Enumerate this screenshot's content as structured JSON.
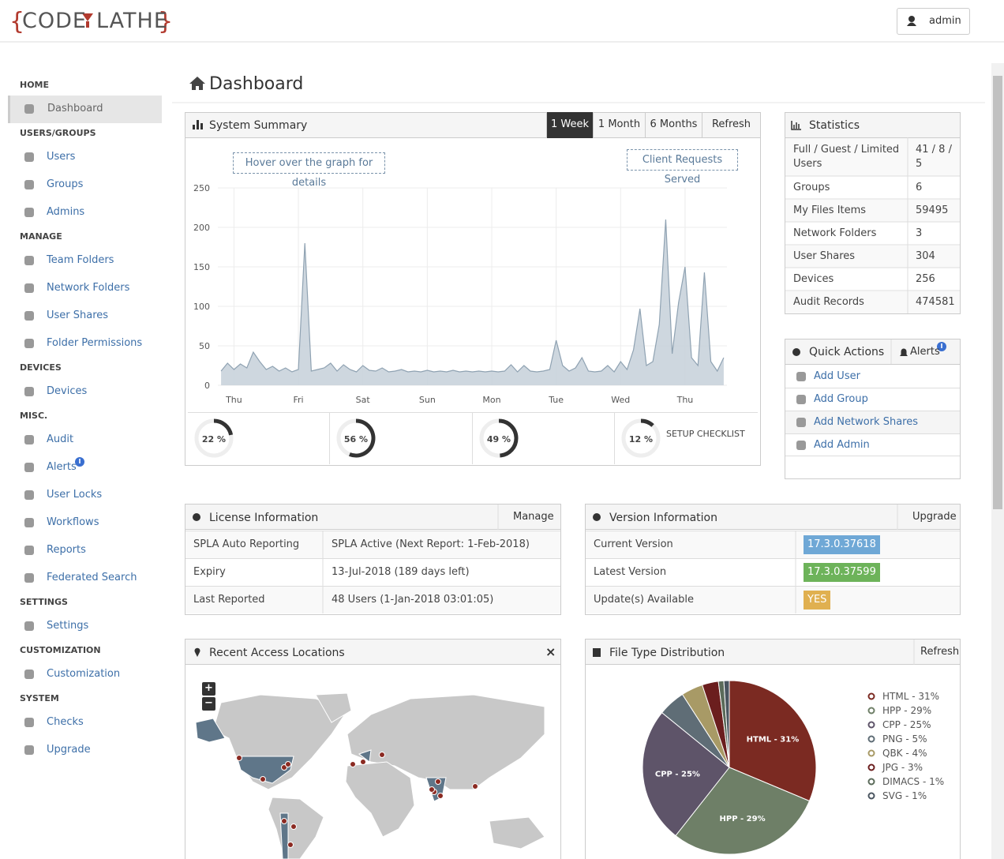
{
  "header": {
    "logo_left": "CODE",
    "logo_right": "LATHE",
    "user": "admin"
  },
  "sidebar": [
    {
      "heading": "HOME",
      "items": [
        "Dashboard"
      ]
    },
    {
      "heading": "USERS/GROUPS",
      "items": [
        "Users",
        "Groups",
        "Admins"
      ]
    },
    {
      "heading": "MANAGE",
      "items": [
        "Team Folders",
        "Network Folders",
        "User Shares",
        "Folder Permissions"
      ]
    },
    {
      "heading": "DEVICES",
      "items": [
        "Devices"
      ]
    },
    {
      "heading": "MISC.",
      "items": [
        "Audit",
        "Alerts",
        "User Locks",
        "Workflows",
        "Reports",
        "Federated Search"
      ]
    },
    {
      "heading": "SETTINGS",
      "items": [
        "Settings"
      ]
    },
    {
      "heading": "CUSTOMIZATION",
      "items": [
        "Customization"
      ]
    },
    {
      "heading": "SYSTEM",
      "items": [
        "Checks",
        "Upgrade"
      ]
    }
  ],
  "page_title": "Dashboard",
  "system_summary": {
    "title": "System Summary",
    "tabs": [
      "1 Week",
      "1 Month",
      "6 Months",
      "Refresh"
    ],
    "hint": "Hover over the graph for details",
    "gauges": [
      {
        "value": 22,
        "label": "22 %"
      },
      {
        "value": 56,
        "label": "56 %"
      },
      {
        "value": 49,
        "label": "49 %"
      },
      {
        "value": 12,
        "label": "12 %"
      }
    ],
    "setup_checklist": "SETUP CHECKLIST"
  },
  "chart_data": [
    {
      "type": "line",
      "x": [
        -0.2,
        -0.1,
        0,
        0.1,
        0.2,
        0.3,
        0.4,
        0.5,
        0.6,
        0.7,
        0.8,
        0.9,
        1.0,
        1.1,
        1.2,
        1.3,
        1.4,
        1.5,
        1.6,
        1.7,
        1.8,
        1.9,
        2.0,
        2.1,
        2.2,
        2.3,
        2.4,
        2.5,
        2.6,
        2.7,
        2.8,
        2.9,
        3.0,
        3.1,
        3.2,
        3.3,
        3.4,
        3.5,
        3.6,
        3.7,
        3.8,
        3.9,
        4.0,
        4.1,
        4.2,
        4.3,
        4.4,
        4.5,
        4.6,
        4.7,
        4.8,
        4.9,
        5.0,
        5.1,
        5.2,
        5.3,
        5.4,
        5.5,
        5.6,
        5.7,
        5.8,
        5.9,
        6.0,
        6.1,
        6.2,
        6.3,
        6.4,
        6.5,
        6.6,
        6.7,
        6.8,
        6.9,
        7.0,
        7.1,
        7.2,
        7.3,
        7.4,
        7.5,
        7.6
      ],
      "series": [
        {
          "name": "Client Requests Served",
          "color": "#8fa2b2",
          "values": [
            18,
            28,
            20,
            27,
            22,
            42,
            30,
            20,
            24,
            18,
            22,
            17,
            20,
            180,
            18,
            20,
            22,
            28,
            18,
            26,
            20,
            17,
            25,
            19,
            18,
            22,
            17,
            18,
            20,
            17,
            18,
            17,
            19,
            17,
            18,
            17,
            19,
            17,
            18,
            17,
            18,
            17,
            18,
            17,
            18,
            26,
            17,
            25,
            18,
            17,
            18,
            20,
            57,
            25,
            18,
            22,
            35,
            18,
            17,
            18,
            25,
            17,
            30,
            20,
            45,
            97,
            25,
            30,
            77,
            210,
            40,
            105,
            150,
            35,
            25,
            143,
            30,
            18,
            35
          ]
        }
      ],
      "xlim": [
        -0.25,
        7.65
      ],
      "xticks": [
        {
          "value": 0,
          "label": "Thu"
        },
        {
          "value": 1,
          "label": "Fri"
        },
        {
          "value": 2,
          "label": "Sat"
        },
        {
          "value": 3,
          "label": "Sun"
        },
        {
          "value": 4,
          "label": "Mon"
        },
        {
          "value": 5,
          "label": "Tue"
        },
        {
          "value": 6,
          "label": "Wed"
        },
        {
          "value": 7,
          "label": "Thu"
        }
      ],
      "ylim": [
        0,
        250
      ],
      "yticks": [
        0,
        50,
        100,
        150,
        200,
        250
      ],
      "grid": true
    },
    {
      "type": "pie",
      "title": "File Type Distribution",
      "labels": [
        "HTML - 31%",
        "HPP - 29%",
        "CPP - 25%",
        "PNG - 5%",
        "QBK - 4%",
        "JPG - 3%",
        "DIMACS - 1%",
        "SVG - 1%"
      ],
      "values": [
        31,
        29,
        25,
        5,
        4,
        3,
        1,
        1
      ],
      "colors": [
        "#7b2a22",
        "#6e7f67",
        "#5e5469",
        "#5f6d76",
        "#a89a66",
        "#6b1e1e",
        "#5b6b5a",
        "#4a5560"
      ]
    }
  ],
  "statistics": {
    "title": "Statistics",
    "rows": [
      [
        "Full / Guest / Limited Users",
        "41 / 8 / 5"
      ],
      [
        "Groups",
        6
      ],
      [
        "My Files Items",
        59495
      ],
      [
        "Network Folders",
        3
      ],
      [
        "User Shares",
        304
      ],
      [
        "Devices",
        256
      ],
      [
        "Audit Records",
        474581
      ]
    ]
  },
  "quick_actions": {
    "title": "Quick Actions",
    "alerts": "Alerts",
    "items": [
      "Add User",
      "Add Group",
      "Add Network Shares",
      "Add Admin"
    ]
  },
  "license": {
    "title": "License Information",
    "action": "Manage",
    "rows": [
      [
        "SPLA Auto Reporting",
        "SPLA Active (Next Report: 1-Feb-2018)"
      ],
      [
        "Expiry",
        "13-Jul-2018 (189 days left)"
      ],
      [
        "Last Reported",
        "48 Users (1-Jan-2018 03:01:05)"
      ]
    ]
  },
  "version": {
    "title": "Version Information",
    "action": "Upgrade",
    "rows": [
      [
        "Current Version",
        "17.3.0.37618"
      ],
      [
        "Latest Version",
        "17.3.0.37599"
      ],
      [
        "Update(s) Available",
        "YES"
      ]
    ]
  },
  "map": {
    "title": "Recent Access Locations",
    "close": "×",
    "zoom_in": "+",
    "zoom_out": "−"
  },
  "file_types": {
    "refresh": "Refresh"
  }
}
